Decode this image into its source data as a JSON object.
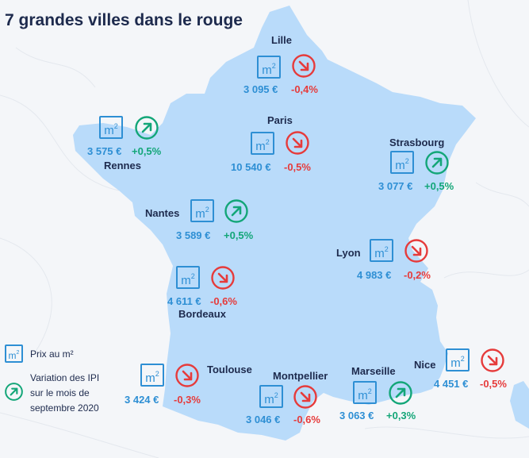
{
  "title": "7 grandes villes dans le rouge",
  "colors": {
    "map_fill": "#b9dbfa",
    "down": "#e63b3b",
    "up": "#13a678",
    "price": "#2e8fd4",
    "text": "#1d2a4d"
  },
  "cities": [
    {
      "name": "Lille",
      "price": "3 095 €",
      "variation": "-0,4%",
      "trend": "down",
      "icon": "arrow-down-right-icon"
    },
    {
      "name": "Paris",
      "price": "10 540 €",
      "variation": "-0,5%",
      "trend": "down",
      "icon": "arrow-down-right-icon"
    },
    {
      "name": "Rennes",
      "price": "3 575 €",
      "variation": "+0,5%",
      "trend": "up",
      "icon": "arrow-up-right-icon"
    },
    {
      "name": "Strasbourg",
      "price": "3 077 €",
      "variation": "+0,5%",
      "trend": "up",
      "icon": "arrow-up-right-icon"
    },
    {
      "name": "Nantes",
      "price": "3 589 €",
      "variation": "+0,5%",
      "trend": "up",
      "icon": "arrow-up-right-icon"
    },
    {
      "name": "Lyon",
      "price": "4 983 €",
      "variation": "-0,2%",
      "trend": "down",
      "icon": "arrow-down-right-icon"
    },
    {
      "name": "Bordeaux",
      "price": "4 611 €",
      "variation": "-0,6%",
      "trend": "down",
      "icon": "arrow-down-right-icon"
    },
    {
      "name": "Toulouse",
      "price": "3 424 €",
      "variation": "-0,3%",
      "trend": "down",
      "icon": "arrow-down-right-icon"
    },
    {
      "name": "Montpellier",
      "price": "3 046 €",
      "variation": "-0,6%",
      "trend": "down",
      "icon": "arrow-down-right-icon"
    },
    {
      "name": "Marseille",
      "price": "3 063 €",
      "variation": "+0,3%",
      "trend": "up",
      "icon": "arrow-up-right-icon"
    },
    {
      "name": "Nice",
      "price": "4 451 €",
      "variation": "-0,5%",
      "trend": "down",
      "icon": "arrow-down-right-icon"
    }
  ],
  "m2_badge": {
    "base": "m",
    "exp": "2"
  },
  "legend": {
    "price_label": "Prix au m²",
    "variation_lines": [
      "Variation des IPI",
      "sur le mois de",
      "septembre 2020"
    ]
  }
}
